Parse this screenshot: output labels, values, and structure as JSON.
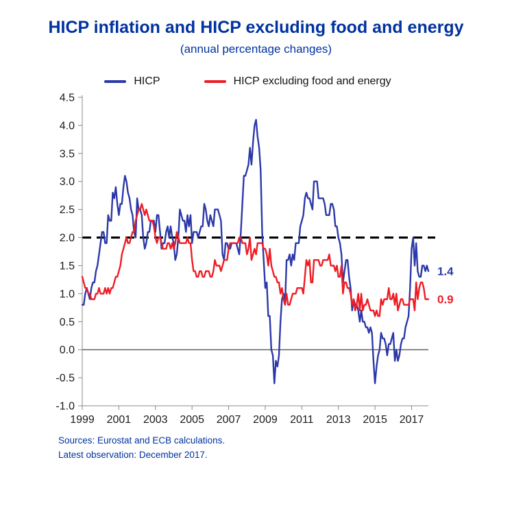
{
  "page": {
    "title": "HICP inflation and HICP excluding food and energy",
    "subtitle": "(annual percentage changes)",
    "source_line1": "Sources: Eurostat and ECB calculations.",
    "source_line2": "Latest observation: December 2017."
  },
  "colors": {
    "title_blue": "#0032a0",
    "hicp_line": "#2b38a8",
    "core_line": "#ee1c25",
    "reference_line": "#000000",
    "axis": "#888888"
  },
  "chart_data": {
    "type": "line",
    "title": "HICP inflation and HICP excluding food and energy",
    "subtitle": "(annual percentage changes)",
    "frequency": "monthly",
    "x_start_year": 1999,
    "x_end_label": "December 2017",
    "x_tick_years": [
      1999,
      2001,
      2003,
      2005,
      2007,
      2009,
      2011,
      2013,
      2015,
      2017
    ],
    "y_ticks": [
      4.5,
      4.0,
      3.5,
      3.0,
      2.5,
      2.0,
      1.5,
      1.0,
      0.5,
      0.0,
      -0.5,
      -1.0
    ],
    "ylim": [
      -1.0,
      4.5
    ],
    "grid": false,
    "legend_position": "top",
    "reference_line": {
      "value": 2.0,
      "style": "dashed",
      "color": "#000000"
    },
    "zero_line": true,
    "series": [
      {
        "name": "HICP",
        "color": "#2b38a8",
        "end_label": "1.4",
        "values": [
          0.8,
          0.8,
          1.0,
          1.1,
          1.0,
          0.9,
          1.1,
          1.2,
          1.2,
          1.4,
          1.5,
          1.7,
          1.9,
          2.1,
          2.1,
          1.9,
          1.9,
          2.4,
          2.3,
          2.3,
          2.8,
          2.7,
          2.9,
          2.6,
          2.4,
          2.6,
          2.6,
          2.9,
          3.1,
          3.0,
          2.8,
          2.7,
          2.5,
          2.4,
          2.1,
          2.0,
          2.7,
          2.5,
          2.5,
          2.4,
          2.0,
          1.8,
          1.9,
          2.1,
          2.1,
          2.3,
          2.3,
          2.3,
          2.1,
          2.4,
          2.4,
          2.1,
          1.8,
          1.9,
          1.9,
          2.1,
          2.2,
          2.0,
          2.2,
          2.0,
          1.9,
          1.6,
          1.7,
          2.0,
          2.5,
          2.4,
          2.3,
          2.3,
          2.1,
          2.4,
          2.2,
          2.4,
          1.9,
          2.1,
          2.1,
          2.1,
          2.0,
          2.1,
          2.2,
          2.2,
          2.6,
          2.5,
          2.3,
          2.2,
          2.4,
          2.3,
          2.2,
          2.5,
          2.5,
          2.5,
          2.4,
          2.3,
          1.7,
          1.6,
          1.9,
          1.9,
          1.8,
          1.8,
          1.9,
          1.9,
          1.9,
          1.9,
          1.8,
          1.7,
          2.1,
          2.6,
          3.1,
          3.1,
          3.2,
          3.3,
          3.6,
          3.3,
          3.7,
          4.0,
          4.1,
          3.8,
          3.6,
          3.2,
          2.1,
          1.6,
          1.1,
          1.2,
          0.6,
          0.6,
          0.0,
          -0.1,
          -0.6,
          -0.2,
          -0.3,
          -0.1,
          0.5,
          0.9,
          1.0,
          0.8,
          1.6,
          1.6,
          1.7,
          1.5,
          1.7,
          1.6,
          1.9,
          1.9,
          1.9,
          2.2,
          2.3,
          2.4,
          2.7,
          2.8,
          2.7,
          2.7,
          2.6,
          2.5,
          3.0,
          3.0,
          3.0,
          2.7,
          2.7,
          2.7,
          2.7,
          2.6,
          2.4,
          2.4,
          2.4,
          2.6,
          2.6,
          2.5,
          2.2,
          2.2,
          2.0,
          1.9,
          1.7,
          1.2,
          1.4,
          1.6,
          1.6,
          1.3,
          1.1,
          0.7,
          0.9,
          0.8,
          0.8,
          0.7,
          0.5,
          0.7,
          0.5,
          0.5,
          0.4,
          0.4,
          0.3,
          0.4,
          0.3,
          -0.2,
          -0.6,
          -0.3,
          -0.1,
          0.0,
          0.3,
          0.2,
          0.2,
          0.1,
          -0.1,
          0.1,
          0.1,
          0.2,
          0.3,
          -0.2,
          0.0,
          -0.2,
          -0.1,
          0.1,
          0.2,
          0.2,
          0.4,
          0.5,
          0.6,
          1.1,
          1.8,
          2.0,
          1.5,
          1.9,
          1.4,
          1.3,
          1.3,
          1.5,
          1.5,
          1.4,
          1.5,
          1.4
        ]
      },
      {
        "name": "HICP excluding food and energy",
        "color": "#ee1c25",
        "end_label": "0.9",
        "values": [
          1.3,
          1.2,
          1.1,
          1.1,
          1.0,
          1.0,
          0.9,
          0.9,
          0.9,
          1.0,
          1.0,
          1.1,
          1.0,
          1.0,
          1.0,
          1.1,
          1.0,
          1.1,
          1.0,
          1.1,
          1.1,
          1.2,
          1.3,
          1.3,
          1.4,
          1.5,
          1.7,
          1.8,
          1.9,
          2.0,
          1.9,
          1.9,
          2.0,
          2.1,
          2.1,
          2.3,
          2.4,
          2.5,
          2.5,
          2.6,
          2.5,
          2.4,
          2.5,
          2.4,
          2.3,
          2.3,
          2.3,
          2.2,
          2.0,
          1.9,
          2.0,
          2.0,
          1.9,
          1.8,
          1.8,
          1.8,
          1.9,
          1.9,
          1.8,
          1.9,
          1.8,
          1.9,
          2.1,
          2.0,
          1.9,
          1.9,
          1.9,
          1.9,
          1.9,
          2.0,
          1.9,
          1.9,
          1.6,
          1.4,
          1.4,
          1.3,
          1.3,
          1.4,
          1.4,
          1.3,
          1.3,
          1.4,
          1.4,
          1.4,
          1.3,
          1.3,
          1.4,
          1.6,
          1.5,
          1.5,
          1.5,
          1.4,
          1.5,
          1.6,
          1.6,
          1.6,
          1.8,
          1.9,
          1.9,
          1.9,
          1.9,
          1.9,
          1.9,
          2.0,
          2.0,
          1.9,
          1.9,
          1.9,
          1.7,
          1.8,
          2.0,
          1.6,
          1.7,
          1.8,
          1.7,
          1.9,
          1.9,
          1.9,
          1.9,
          1.8,
          1.8,
          1.7,
          1.5,
          1.8,
          1.5,
          1.4,
          1.3,
          1.3,
          1.2,
          1.2,
          1.0,
          1.1,
          0.9,
          0.8,
          1.0,
          0.8,
          0.8,
          0.9,
          1.0,
          1.0,
          1.0,
          1.1,
          1.1,
          1.1,
          1.1,
          1.0,
          1.3,
          1.6,
          1.5,
          1.6,
          1.2,
          1.2,
          1.6,
          1.6,
          1.6,
          1.6,
          1.5,
          1.5,
          1.6,
          1.6,
          1.6,
          1.6,
          1.7,
          1.5,
          1.5,
          1.5,
          1.4,
          1.5,
          1.3,
          1.3,
          1.5,
          1.0,
          1.2,
          1.2,
          1.1,
          1.1,
          1.0,
          0.8,
          0.9,
          0.7,
          0.8,
          1.0,
          0.7,
          1.0,
          0.7,
          0.8,
          0.8,
          0.9,
          0.8,
          0.7,
          0.7,
          0.7,
          0.6,
          0.7,
          0.6,
          0.6,
          0.9,
          0.8,
          0.9,
          0.9,
          0.9,
          1.1,
          0.9,
          0.9,
          1.0,
          0.8,
          1.0,
          0.7,
          0.8,
          0.9,
          0.9,
          0.8,
          0.8,
          0.8,
          0.8,
          0.9,
          0.9,
          0.9,
          0.7,
          1.2,
          0.9,
          1.1,
          1.2,
          1.2,
          1.1,
          0.9,
          0.9,
          0.9
        ]
      }
    ]
  }
}
